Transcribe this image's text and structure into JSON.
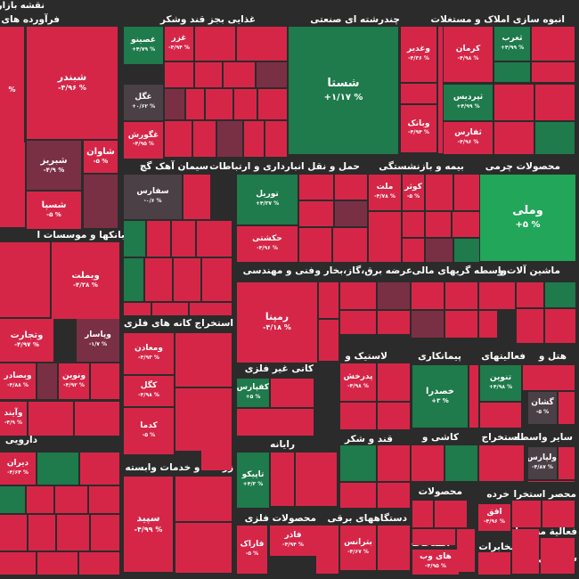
{
  "app": {
    "title": "نقشه بازار"
  },
  "colors": {
    "up_strong": "#21a65a",
    "up": "#1f7a4c",
    "flat": "#4a4045",
    "down_light": "#7a3044",
    "down_mid": "#a8233f",
    "down": "#d62648",
    "gap": "#2b2b2b"
  },
  "sectors": [
    "فرآورده های نف",
    "غذایی بجز قند وشکر",
    "چندرشته ای صنعتی",
    "انبوه سازی املاک و مستغلات",
    "سیمان آهک گچ",
    "حمل و نقل انبارداری و ارتباطات",
    "بیمه و بازنشستگی",
    "محصولات چرمی",
    "بانکها و موسسات ا",
    "فنی و مهندسی",
    "عرضه برق،گاز،بخار و",
    "واسطه گریهای مالی",
    "ماشین آلات و",
    "استخراج کانه های فلزی",
    "لاستیک و",
    "پیمانکاری",
    "فعالیتهای",
    "هتل و",
    "کانی غیر فلزی",
    "رایانه",
    "قند و شکر",
    "کاشی و",
    "استخراج",
    "سایر واسطه",
    "دارویی",
    "زراعت و خدمات وابسته",
    "محصولات",
    "خرده",
    "محصر استخرا",
    "محصولات فلزی",
    "دستگاههای برقی",
    "اطلاعات و",
    "فعالیة محصوا",
    "مخابرات",
    "سا فعال منس"
  ],
  "tiles": [
    {
      "symbol": "",
      "change": "%"
    },
    {
      "symbol": "شبندر",
      "change": "-۴/۹۶ %"
    },
    {
      "symbol": "شاوان",
      "change": "-۵ %"
    },
    {
      "symbol": "شبریز",
      "change": "-۴/۹ %"
    },
    {
      "symbol": "شسپا",
      "change": "-۵ %"
    },
    {
      "symbol": "غزر",
      "change": "-۴/۹۴ %"
    },
    {
      "symbol": "غصینو",
      "change": "+۴/۷۹ %"
    },
    {
      "symbol": "غگل",
      "change": "+۰/۶۲ %"
    },
    {
      "symbol": "غگورش",
      "change": "-۴/۹۵ %"
    },
    {
      "symbol": "شستا",
      "change": "+۱/۱۷ %"
    },
    {
      "symbol": "وغدیر",
      "change": "-۴/۳۶ %"
    },
    {
      "symbol": "وبانک",
      "change": "-۴/۹۴ %"
    },
    {
      "symbol": "ثغرب",
      "change": "+۴/۹۹ %"
    },
    {
      "symbol": "کرمان",
      "change": "-۴/۹۸ %"
    },
    {
      "symbol": "ثپردیس",
      "change": "+۴/۹۹ %"
    },
    {
      "symbol": "ثفارس",
      "change": "-۴/۹۶ %"
    },
    {
      "symbol": "سفارس",
      "change": "-۰/۶ %"
    },
    {
      "symbol": "توریل",
      "change": "+۴/۳۷ %"
    },
    {
      "symbol": "حکشتی",
      "change": "-۴/۹۶ %"
    },
    {
      "symbol": "ملت",
      "change": "-۴/۷۸ %"
    },
    {
      "symbol": "کوثر",
      "change": "-۵ %"
    },
    {
      "symbol": "وملی",
      "change": "+۵ %"
    },
    {
      "symbol": "وبملت",
      "change": "-۴/۳۸ %"
    },
    {
      "symbol": "وتجارت",
      "change": "-۴/۹۷ %"
    },
    {
      "symbol": "وپاسار",
      "change": "-۱/۷ %"
    },
    {
      "symbol": "وبصادر",
      "change": "-۴/۸۸ %"
    },
    {
      "symbol": "ونوین",
      "change": "-۴/۹۲ %"
    },
    {
      "symbol": "وآیند",
      "change": "-۴/۹ %"
    },
    {
      "symbol": "رمپنا",
      "change": "-۴/۱۸ %"
    },
    {
      "symbol": "ومعادن",
      "change": "-۴/۹۳ %"
    },
    {
      "symbol": "کگل",
      "change": "-۴/۹۸ %"
    },
    {
      "symbol": "کدما",
      "change": "-۵ %"
    },
    {
      "symbol": "پدرخش",
      "change": "-۴/۹۸ %"
    },
    {
      "symbol": "خصدرا",
      "change": "+۳ %"
    },
    {
      "symbol": "تنوین",
      "change": "+۴/۹۸ %"
    },
    {
      "symbol": "گشان",
      "change": "-۵ %"
    },
    {
      "symbol": "کفپارس",
      "change": "+۵ %"
    },
    {
      "symbol": "دیران",
      "change": "-۴/۶۴ %"
    },
    {
      "symbol": "تاپیکو",
      "change": "+۴/۳ %"
    },
    {
      "symbol": "ولپارس",
      "change": "-۴/۸۷ %"
    },
    {
      "symbol": "سپید",
      "change": "-۴/۹۹ %"
    },
    {
      "symbol": "افق",
      "change": "-۴/۹۶ %"
    },
    {
      "symbol": "فاذر",
      "change": "-۴/۹۴ %"
    },
    {
      "symbol": "فاراک",
      "change": "-۵ %"
    },
    {
      "symbol": "بترانس",
      "change": "-۴/۶۷ %"
    },
    {
      "symbol": "های وب",
      "change": "-۴/۹۵ %"
    }
  ]
}
